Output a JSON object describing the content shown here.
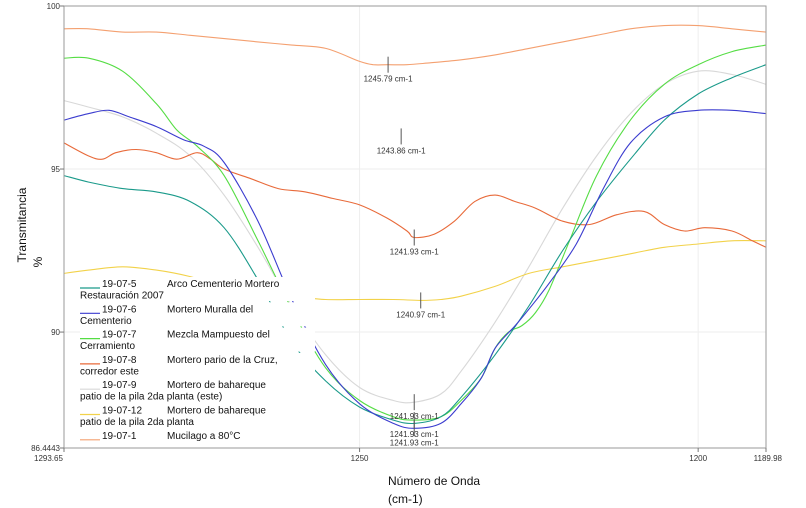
{
  "chart_data": {
    "type": "line",
    "title": "",
    "xlabel_line1": "Número de Onda",
    "xlabel_line2": "(cm-1)",
    "ylabel_line1": "Transmitancia",
    "ylabel_line2": "%",
    "xlim": [
      1293.65,
      1189.98
    ],
    "ylim": [
      86.4443,
      100
    ],
    "x_ticks": [
      {
        "value": 1293.65,
        "label": "1293.65"
      },
      {
        "value": 1250,
        "label": "1250"
      },
      {
        "value": 1200,
        "label": "1200"
      },
      {
        "value": 1189.98,
        "label": "1189.98"
      }
    ],
    "y_ticks": [
      {
        "value": 100,
        "label": "100"
      },
      {
        "value": 95,
        "label": "95"
      },
      {
        "value": 90,
        "label": "90"
      },
      {
        "value": 86.4443,
        "label": "86.4443"
      }
    ],
    "series": [
      {
        "name": "19-07-5",
        "desc1": "Arco Cementerio Mortero",
        "desc2": "Restauración 2007",
        "color": "#1a9a8a",
        "x": [
          1293.65,
          1290,
          1285,
          1280,
          1275,
          1270,
          1265,
          1260,
          1255,
          1250,
          1245,
          1241.93,
          1238,
          1235,
          1230,
          1225,
          1220,
          1215,
          1210,
          1205,
          1200,
          1195,
          1189.98
        ],
        "y": [
          94.8,
          94.6,
          94.4,
          94.3,
          94.0,
          93.2,
          91.6,
          89.7,
          88.5,
          87.7,
          87.3,
          87.2,
          87.4,
          88.0,
          89.3,
          90.8,
          92.5,
          94.0,
          95.3,
          96.5,
          97.3,
          97.8,
          98.2
        ]
      },
      {
        "name": "19-07-6",
        "desc1": "Mortero Muralla del",
        "desc2": "Cementerio",
        "color": "#3b3ccf",
        "x": [
          1293.65,
          1290,
          1287,
          1284,
          1280,
          1276,
          1273,
          1270,
          1265,
          1260,
          1255,
          1250,
          1245,
          1241.93,
          1238,
          1235,
          1232,
          1230,
          1227,
          1225,
          1222,
          1218,
          1214,
          1210,
          1205,
          1200,
          1195,
          1189.98
        ],
        "y": [
          96.5,
          96.7,
          96.8,
          96.6,
          96.3,
          95.9,
          95.7,
          95.2,
          93.4,
          91.0,
          89.0,
          87.8,
          87.2,
          87.05,
          87.2,
          87.8,
          88.6,
          89.5,
          90.2,
          90.7,
          91.5,
          92.7,
          94.4,
          95.8,
          96.6,
          96.8,
          96.8,
          96.7
        ]
      },
      {
        "name": "19-07-7",
        "desc1": "Mezcla Mampuesto del",
        "desc2": "Cerramiento",
        "color": "#55dd44",
        "x": [
          1293.65,
          1290,
          1285,
          1280,
          1277,
          1274,
          1270,
          1265,
          1260,
          1255,
          1250,
          1245,
          1241.93,
          1238,
          1235,
          1232,
          1230,
          1228,
          1226,
          1224,
          1222,
          1219,
          1215,
          1210,
          1205,
          1200,
          1195,
          1189.98
        ],
        "y": [
          98.4,
          98.4,
          98.0,
          97.0,
          96.2,
          95.7,
          94.8,
          92.8,
          90.7,
          88.9,
          87.9,
          87.4,
          87.3,
          87.4,
          87.9,
          88.6,
          89.5,
          90.0,
          90.2,
          90.6,
          91.3,
          92.8,
          94.8,
          96.5,
          97.6,
          98.2,
          98.6,
          98.8
        ]
      },
      {
        "name": "19-07-8",
        "desc1": "Mortero pario de la Cruz,",
        "desc2": "corredor este",
        "color": "#e86a3a",
        "x": [
          1293.65,
          1290,
          1288,
          1286,
          1283,
          1280,
          1277,
          1274,
          1272,
          1270,
          1266,
          1262,
          1258,
          1254,
          1250,
          1246,
          1243,
          1241.93,
          1239,
          1236,
          1233,
          1230,
          1227,
          1224,
          1220,
          1216,
          1212,
          1208,
          1205,
          1202,
          1199,
          1195,
          1192,
          1189.98
        ],
        "y": [
          95.8,
          95.4,
          95.3,
          95.5,
          95.6,
          95.5,
          95.3,
          95.5,
          95.3,
          95.0,
          94.7,
          94.4,
          94.3,
          94.1,
          93.9,
          93.5,
          93.1,
          92.9,
          93.0,
          93.4,
          94.0,
          94.2,
          94.0,
          93.8,
          93.4,
          93.3,
          93.6,
          93.7,
          93.3,
          93.1,
          93.2,
          93.1,
          92.8,
          92.6
        ]
      },
      {
        "name": "19-07-9",
        "desc1": "Mortero de bahareque",
        "desc2": "patio de la pila 2da planta (este)",
        "color": "#d8d8d8",
        "x": [
          1293.65,
          1290,
          1285,
          1280,
          1275,
          1270,
          1265,
          1260,
          1255,
          1250,
          1245,
          1241.93,
          1238,
          1235,
          1230,
          1225,
          1220,
          1215,
          1210,
          1205,
          1200,
          1195,
          1189.98
        ],
        "y": [
          97.1,
          96.9,
          96.6,
          96.1,
          95.4,
          94.2,
          92.6,
          90.8,
          89.3,
          88.3,
          87.9,
          87.85,
          88.1,
          88.8,
          90.3,
          92.0,
          93.8,
          95.4,
          96.7,
          97.6,
          98.0,
          97.9,
          97.6
        ]
      },
      {
        "name": "19-07-12",
        "desc1": "Mortero de bahareque",
        "desc2": "patio de la pila 2da planta",
        "color": "#f2d24a",
        "x": [
          1293.65,
          1290,
          1285,
          1280,
          1275,
          1270,
          1265,
          1260,
          1255,
          1250,
          1245,
          1240.97,
          1238,
          1235,
          1230,
          1225,
          1220,
          1215,
          1210,
          1205,
          1200,
          1195,
          1189.98
        ],
        "y": [
          91.8,
          91.9,
          92.0,
          91.9,
          91.7,
          91.4,
          91.2,
          91.1,
          91.0,
          91.0,
          91.0,
          90.97,
          91.0,
          91.1,
          91.4,
          91.8,
          92.0,
          92.2,
          92.4,
          92.6,
          92.7,
          92.8,
          92.8
        ]
      },
      {
        "name": "19-07-1",
        "desc1": "Mucilago a 80°C",
        "desc2": "",
        "color": "#f4a070",
        "x": [
          1293.65,
          1290,
          1285,
          1280,
          1275,
          1270,
          1265,
          1260,
          1255,
          1250,
          1248,
          1245.79,
          1243,
          1240,
          1235,
          1230,
          1225,
          1220,
          1215,
          1210,
          1205,
          1200,
          1195,
          1189.98
        ],
        "y": [
          99.3,
          99.3,
          99.2,
          99.2,
          99.1,
          99.0,
          98.9,
          98.8,
          98.7,
          98.3,
          98.2,
          98.2,
          98.2,
          98.25,
          98.35,
          98.5,
          98.7,
          98.9,
          99.1,
          99.3,
          99.4,
          99.4,
          99.3,
          99.2
        ]
      }
    ],
    "annotations": [
      {
        "x": 1245.79,
        "y": 98.2,
        "label": "1245.79 cm-1",
        "series": "19-07-1"
      },
      {
        "x": 1243.86,
        "y": 96.0,
        "label": "1243.86 cm-1",
        "series": "19-07-7"
      },
      {
        "x": 1241.93,
        "y": 92.9,
        "label": "1241.93 cm-1",
        "series": "19-07-8"
      },
      {
        "x": 1240.97,
        "y": 90.97,
        "label": "1240.97 cm-1",
        "series": "19-07-12"
      },
      {
        "x": 1241.93,
        "y": 87.85,
        "label": "1241.93 cm-1",
        "series": "19-07-9"
      },
      {
        "x": 1241.93,
        "y": 87.3,
        "label": "1241.93 cm-1",
        "series": "19-07-7"
      },
      {
        "x": 1241.93,
        "y": 87.05,
        "label": "1241.93 cm-1",
        "series": "19-07-6"
      }
    ],
    "legend_position": "bottom-left"
  }
}
